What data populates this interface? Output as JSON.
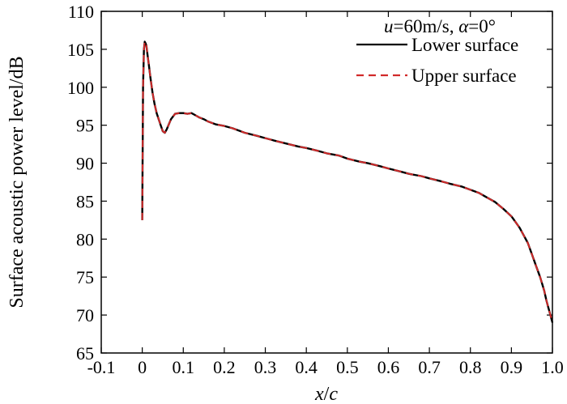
{
  "chart_data": {
    "type": "line",
    "xlabel": {
      "var1": "x",
      "sep": "/",
      "var2": "c"
    },
    "ylabel": "Surface acoustic power level/dB",
    "xlim": [
      -0.1,
      1.0
    ],
    "ylim": [
      65,
      110
    ],
    "xticks": [
      "-0.1",
      "0",
      "0.1",
      "0.2",
      "0.3",
      "0.4",
      "0.5",
      "0.6",
      "0.7",
      "0.8",
      "0.9",
      "1.0"
    ],
    "yticks": [
      "65",
      "70",
      "75",
      "80",
      "85",
      "90",
      "95",
      "100",
      "105",
      "110"
    ],
    "annotation": {
      "u_sym": "u",
      "u_val": "=60m/s, ",
      "a_sym": "α",
      "a_val": "=0°"
    },
    "legend_position": "top-right",
    "series": [
      {
        "name": "Lower surface",
        "color": "#000000",
        "dash": "solid",
        "x": [
          0.0,
          0.002,
          0.004,
          0.006,
          0.008,
          0.01,
          0.013,
          0.016,
          0.02,
          0.025,
          0.03,
          0.035,
          0.04,
          0.045,
          0.05,
          0.055,
          0.06,
          0.07,
          0.08,
          0.09,
          0.1,
          0.11,
          0.12,
          0.13,
          0.14,
          0.15,
          0.16,
          0.18,
          0.2,
          0.22,
          0.25,
          0.28,
          0.3,
          0.32,
          0.35,
          0.38,
          0.4,
          0.43,
          0.45,
          0.48,
          0.5,
          0.53,
          0.55,
          0.58,
          0.6,
          0.63,
          0.65,
          0.68,
          0.7,
          0.73,
          0.75,
          0.78,
          0.8,
          0.82,
          0.84,
          0.86,
          0.88,
          0.9,
          0.92,
          0.94,
          0.95,
          0.96,
          0.97,
          0.98,
          0.985,
          0.99,
          0.995,
          1.0
        ],
        "y": [
          82.5,
          100.0,
          105.0,
          106.0,
          105.8,
          105.5,
          104.2,
          103.0,
          101.2,
          99.3,
          97.8,
          96.6,
          95.8,
          95.0,
          94.2,
          94.0,
          94.5,
          95.8,
          96.5,
          96.6,
          96.6,
          96.5,
          96.6,
          96.3,
          96.0,
          95.8,
          95.5,
          95.1,
          94.9,
          94.6,
          94.0,
          93.6,
          93.3,
          93.0,
          92.6,
          92.2,
          92.0,
          91.6,
          91.3,
          91.0,
          90.6,
          90.2,
          90.0,
          89.6,
          89.3,
          88.9,
          88.6,
          88.3,
          88.0,
          87.6,
          87.3,
          86.9,
          86.5,
          86.1,
          85.5,
          84.9,
          84.0,
          83.0,
          81.5,
          79.5,
          78.0,
          76.5,
          75.0,
          73.2,
          72.0,
          71.0,
          70.0,
          69.0
        ]
      },
      {
        "name": "Upper surface",
        "color": "#d12a2a",
        "dash": "dashed",
        "x": [
          0.0,
          0.002,
          0.004,
          0.006,
          0.008,
          0.01,
          0.013,
          0.016,
          0.02,
          0.025,
          0.03,
          0.035,
          0.04,
          0.045,
          0.05,
          0.055,
          0.06,
          0.07,
          0.08,
          0.09,
          0.1,
          0.11,
          0.12,
          0.13,
          0.14,
          0.15,
          0.16,
          0.18,
          0.2,
          0.22,
          0.25,
          0.28,
          0.3,
          0.32,
          0.35,
          0.38,
          0.4,
          0.43,
          0.45,
          0.48,
          0.5,
          0.53,
          0.55,
          0.58,
          0.6,
          0.63,
          0.65,
          0.68,
          0.7,
          0.73,
          0.75,
          0.78,
          0.8,
          0.82,
          0.84,
          0.86,
          0.88,
          0.9,
          0.92,
          0.94,
          0.95,
          0.96,
          0.97,
          0.98,
          0.985,
          0.99,
          0.995,
          1.0
        ],
        "y": [
          82.5,
          100.0,
          105.0,
          106.0,
          105.8,
          105.5,
          104.2,
          103.0,
          101.2,
          99.3,
          97.8,
          96.6,
          95.8,
          95.0,
          94.2,
          94.0,
          94.5,
          95.8,
          96.5,
          96.6,
          96.6,
          96.5,
          96.6,
          96.3,
          96.0,
          95.8,
          95.5,
          95.1,
          94.9,
          94.6,
          94.0,
          93.6,
          93.3,
          93.0,
          92.6,
          92.2,
          92.0,
          91.6,
          91.3,
          91.0,
          90.6,
          90.2,
          90.0,
          89.6,
          89.3,
          88.9,
          88.6,
          88.3,
          88.0,
          87.6,
          87.3,
          86.9,
          86.5,
          86.1,
          85.5,
          84.9,
          84.0,
          83.0,
          81.5,
          79.5,
          78.0,
          76.5,
          75.0,
          73.2,
          72.0,
          71.0,
          70.0,
          69.0
        ]
      }
    ]
  }
}
